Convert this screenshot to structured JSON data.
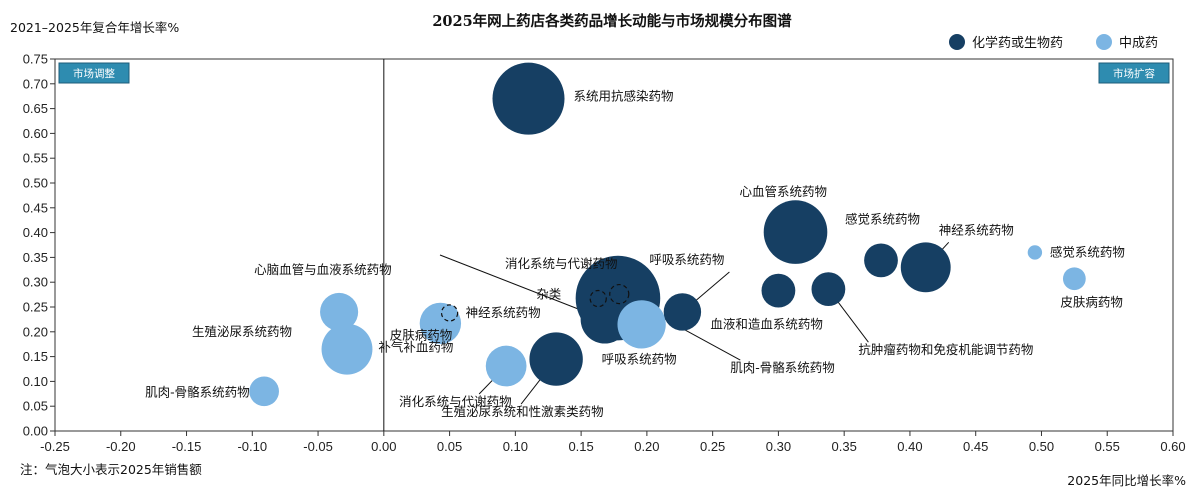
{
  "chart_data": {
    "type": "scatter",
    "title": "2025年网上药店各类药品增长动能与市场规模分布图谱",
    "xlabel": "2025年同比增长率%",
    "ylabel": "2021–2025年复合年增长率%",
    "xlim": [
      -0.25,
      0.6
    ],
    "ylim": [
      0,
      0.75
    ],
    "x_ticks": [
      "-0.25",
      "-0.20",
      "-0.15",
      "-0.10",
      "-0.05",
      "0.00",
      "0.05",
      "0.10",
      "0.15",
      "0.20",
      "0.25",
      "0.30",
      "0.35",
      "0.40",
      "0.45",
      "0.50",
      "0.55",
      "0.60"
    ],
    "y_ticks": [
      "0.00",
      "0.05",
      "0.10",
      "0.15",
      "0.20",
      "0.25",
      "0.30",
      "0.35",
      "0.40",
      "0.45",
      "0.50",
      "0.55",
      "0.60",
      "0.65",
      "0.70",
      "0.75"
    ],
    "grid": false,
    "legend_position": "top-right",
    "note": "注：气泡大小表示2025年销售额",
    "quadrant_labels": [
      "市场调整",
      "市场扩容"
    ],
    "colors": {
      "chemical": "#163f63",
      "tcm": "#7cb5e3"
    },
    "series": [
      {
        "name": "化学药或生物药",
        "color": "#163f63",
        "points": [
          {
            "label": "系统用抗感染药物",
            "x": 0.11,
            "y": 0.67,
            "size": 1.0,
            "dashed": false
          },
          {
            "label": "心血管系统药物",
            "x": 0.313,
            "y": 0.401,
            "size": 0.78,
            "dashed": false
          },
          {
            "label": "感觉系统药物",
            "x": 0.378,
            "y": 0.344,
            "size": 0.22,
            "dashed": false
          },
          {
            "label": "神经系统药物",
            "x": 0.412,
            "y": 0.33,
            "size": 0.48,
            "dashed": false
          },
          {
            "label": "消化系统与代谢药物",
            "x": 0.178,
            "y": 0.268,
            "size": 1.38,
            "dashed": false
          },
          {
            "label": "呼吸系统药物",
            "x": 0.227,
            "y": 0.24,
            "size": 0.27,
            "dashed": false
          },
          {
            "label": "血液和造血系统药物",
            "x": 0.3,
            "y": 0.283,
            "size": 0.22,
            "dashed": false
          },
          {
            "label": "抗肿瘤药物和免疫机能调节药物",
            "x": 0.338,
            "y": 0.286,
            "size": 0.22,
            "dashed": false
          },
          {
            "label": "皮肤病药物",
            "x": 0.168,
            "y": 0.225,
            "size": 0.45,
            "dashed": false
          },
          {
            "label": "杂类",
            "x": 0.163,
            "y": 0.267,
            "size": 0.05,
            "dashed": true
          },
          {
            "label": "肌肉-骨骼系统药物",
            "x": 0.179,
            "y": 0.276,
            "size": 0.07,
            "dashed": true
          },
          {
            "label": "生殖泌尿系统和性激素类药物",
            "x": 0.131,
            "y": 0.145,
            "size": 0.55,
            "dashed": false
          }
        ]
      },
      {
        "name": "中成药",
        "color": "#7cb5e3",
        "points": [
          {
            "label": "感觉系统药物",
            "x": 0.495,
            "y": 0.36,
            "size": 0.04,
            "dashed": false
          },
          {
            "label": "皮肤病药物",
            "x": 0.525,
            "y": 0.307,
            "size": 0.1,
            "dashed": false
          },
          {
            "label": "心脑血管与血液系统药物",
            "x": -0.034,
            "y": 0.24,
            "size": 0.28,
            "dashed": false
          },
          {
            "label": "生殖泌尿系统药物",
            "x": -0.028,
            "y": 0.165,
            "size": 0.5,
            "dashed": false
          },
          {
            "label": "神经系统药物",
            "x": 0.05,
            "y": 0.238,
            "size": 0.05,
            "dashed": true
          },
          {
            "label": "补气补血药物",
            "x": 0.043,
            "y": 0.217,
            "size": 0.33,
            "dashed": false
          },
          {
            "label": "呼吸系统药物",
            "x": 0.196,
            "y": 0.215,
            "size": 0.45,
            "dashed": false
          },
          {
            "label": "消化系统与代谢药物",
            "x": 0.093,
            "y": 0.131,
            "size": 0.32,
            "dashed": false
          },
          {
            "label": "肌肉-骨骼系统药物",
            "x": -0.091,
            "y": 0.08,
            "size": 0.17,
            "dashed": false
          }
        ]
      }
    ]
  }
}
